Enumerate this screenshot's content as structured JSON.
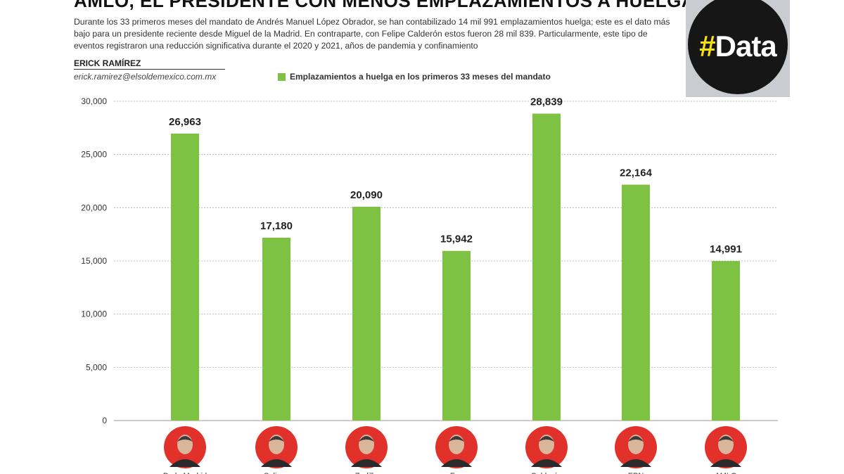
{
  "header": {
    "title": "AMLO, EL PRESIDENTE CON MENOS EMPLAZAMIENTOS A HUELGA",
    "description": "Durante los 33 primeros meses del mandato de Andrés Manuel López Obrador, se han contabilizado 14 mil 991 emplazamientos huelga; este es el dato más bajo para un presidente reciente desde Miguel de la Madrid. En contraparte, con Felipe Calderón estos fueron 28 mil 839. Particularmente, este tipo de eventos registraron una reducción significativa durante el 2020 y 2021, años de pandemia y confinamiento",
    "author": "ERICK RAMÍREZ",
    "email": "erick.ramirez@elsoldemexico.com.mx"
  },
  "badge": {
    "hash": "#",
    "text": "Data"
  },
  "colors": {
    "bar": "#7dc242",
    "grid": "#bdbdbd",
    "avatar_ring": "#e2302b"
  },
  "chart_data": {
    "type": "bar",
    "categories": [
      "De la Madrid",
      "Salinas",
      "Zedillo",
      "Fox",
      "Calderón",
      "EPN",
      "AMLO"
    ],
    "series": [
      {
        "name": "Emplazamientos a huelga en los primeros 33 meses del mandato",
        "values": [
          26963,
          17180,
          20090,
          15942,
          28839,
          22164,
          14991
        ]
      }
    ],
    "value_labels": [
      "26,963",
      "17,180",
      "20,090",
      "15,942",
      "28,839",
      "22,164",
      "14,991"
    ],
    "yticks": [
      0,
      5000,
      10000,
      15000,
      20000,
      25000,
      30000
    ],
    "ytick_labels": [
      "0",
      "5,000",
      "10,000",
      "15,000",
      "20,000",
      "25,000",
      "30,000"
    ],
    "ylim": [
      0,
      30000
    ],
    "grid": true,
    "legend": "top"
  }
}
